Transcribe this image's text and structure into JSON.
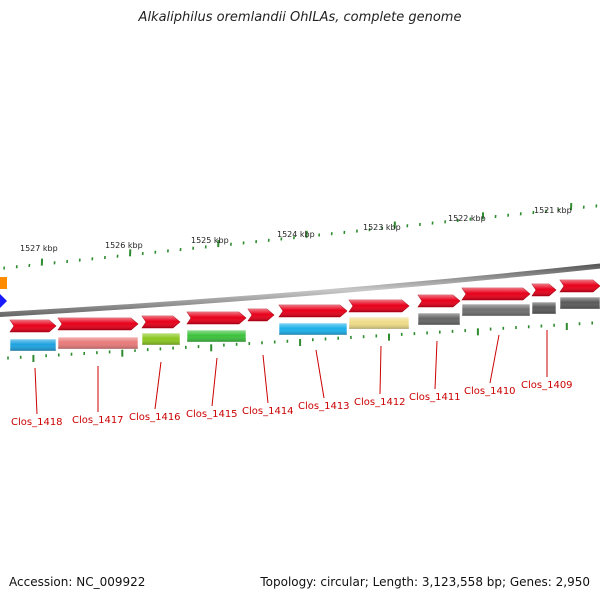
{
  "title": "Alkaliphilus oremlandii OhILAs, complete genome",
  "footer": {
    "accession": "Accession: NC_009922",
    "summary": "Topology: circular; Length: 3,123,558 bp; Genes: 2,950"
  },
  "colors": {
    "ring": "#8e8e8e",
    "tick": "#2e8b2e",
    "gene_forward": "#e8001a",
    "label": "#cc0000"
  },
  "kbp_labels": [
    "1527 kbp",
    "1526 kbp",
    "1525 kbp",
    "1524 kbp",
    "1523 kbp",
    "1522 kbp",
    "1521 kbp"
  ],
  "genes": [
    "Clos_1418",
    "Clos_1417",
    "Clos_1416",
    "Clos_1415",
    "Clos_1414",
    "Clos_1413",
    "Clos_1412",
    "Clos_1411",
    "Clos_1410",
    "Clos_1409"
  ],
  "track_colors": [
    "#1ea2e0",
    "#e97a7a",
    "#8bc820",
    "#3cc23c",
    "#4a7fb5",
    "#1cb0ea",
    "#eedc88",
    "#666666",
    "#707070",
    "#5a5a5a"
  ]
}
